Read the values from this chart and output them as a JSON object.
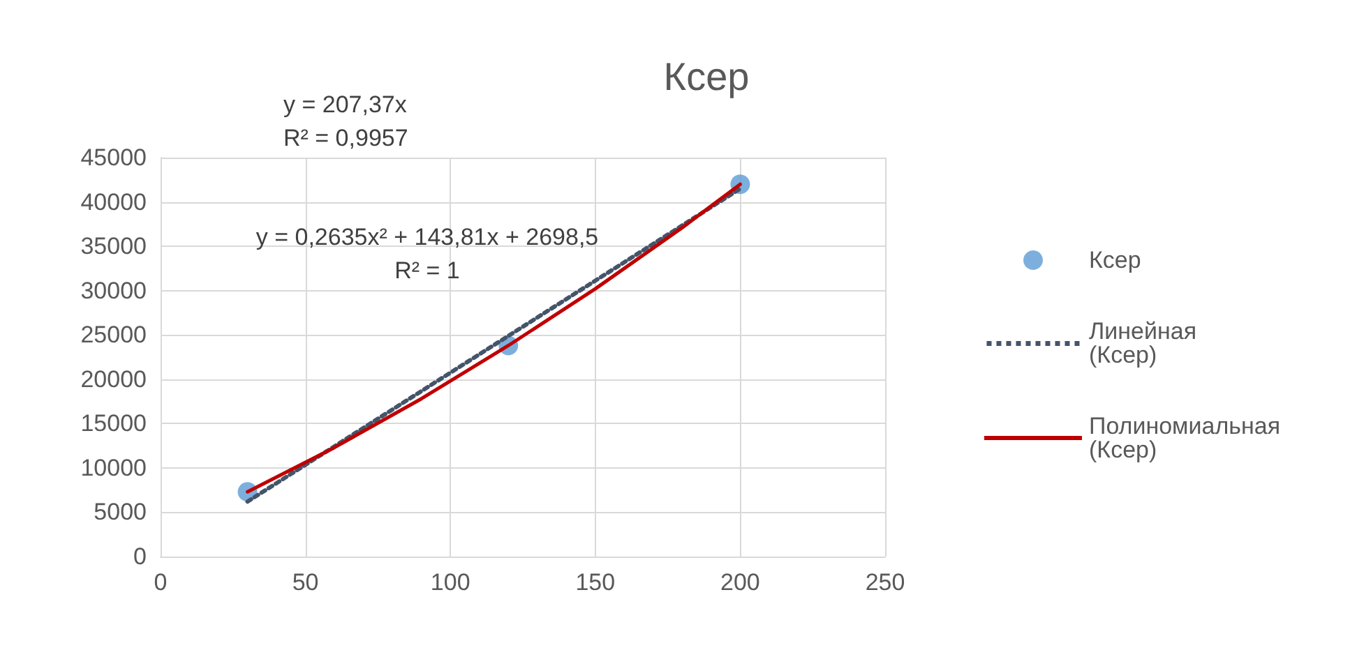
{
  "chart_data": {
    "type": "scatter",
    "title": "Ксер",
    "xlim": [
      0,
      250
    ],
    "xticks": [
      0,
      50,
      100,
      150,
      200,
      250
    ],
    "ylim": [
      0,
      45000
    ],
    "yticks": [
      0,
      5000,
      10000,
      15000,
      20000,
      25000,
      30000,
      35000,
      40000,
      45000
    ],
    "grid": true,
    "legend": "right",
    "annotations": [
      "y = 207,37x\nR² = 0,9957",
      "y = 0,2635x² + 143,81x + 2698,5\nR² = 1"
    ],
    "series": [
      {
        "name": "Ксер",
        "color": "#5b9bd5",
        "marker": "circle",
        "x": [
          30,
          120,
          200
        ],
        "values": [
          7300,
          23800,
          42000
        ]
      },
      {
        "name": "Линейная (Ксер)",
        "type": "line",
        "color": "#44546a",
        "line_style": "dotted",
        "marker": "none",
        "x": [
          30,
          200
        ],
        "values": [
          6200,
          41500
        ]
      },
      {
        "name": "Полиномиальная (Ксер)",
        "type": "line",
        "color": "#c00000",
        "line_style": "solid",
        "marker": "none",
        "x": [
          30,
          60,
          90,
          120,
          150,
          180,
          200
        ],
        "values": [
          7300,
          12300,
          17800,
          23800,
          30200,
          37100,
          42000
        ]
      }
    ]
  }
}
